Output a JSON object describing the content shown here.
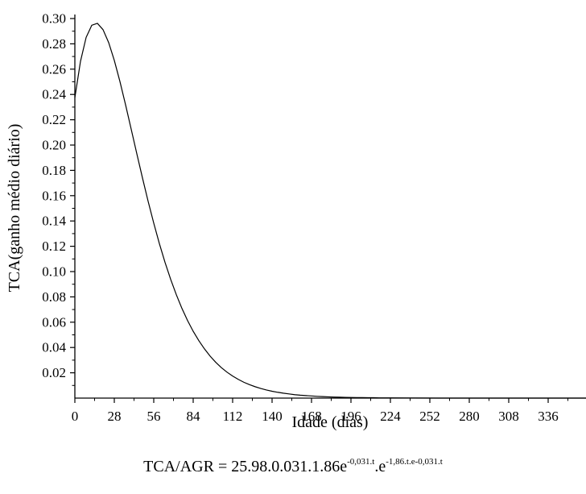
{
  "chart_data": {
    "type": "line",
    "title": "",
    "xlabel": "Idade (dias)",
    "ylabel": "TCA(ganho médio diário)",
    "xlim": [
      0,
      364
    ],
    "ylim": [
      0,
      0.3
    ],
    "x_ticks": [
      0,
      28,
      56,
      84,
      112,
      140,
      168,
      196,
      224,
      252,
      280,
      308,
      336
    ],
    "x_tick_labels": [
      "0",
      "28",
      "56",
      "84",
      "112",
      "140",
      "168",
      "196",
      "224",
      "252",
      "280",
      "308",
      "336"
    ],
    "y_ticks": [
      0.02,
      0.04,
      0.06,
      0.08,
      0.1,
      0.12,
      0.14,
      0.16,
      0.18,
      0.2,
      0.22,
      0.24,
      0.26,
      0.28,
      0.3
    ],
    "y_tick_labels": [
      "0.02",
      "0.04",
      "0.06",
      "0.08",
      "0.10",
      "0.12",
      "0.14",
      "0.16",
      "0.18",
      "0.20",
      "0.22",
      "0.24",
      "0.26",
      "0.28",
      "0.30"
    ],
    "grid": false,
    "legend": "none",
    "series": [
      {
        "x": [
          0,
          4,
          8,
          12,
          16,
          20,
          24,
          28,
          32,
          36,
          40,
          44,
          48,
          52,
          56,
          60,
          64,
          68,
          72,
          76,
          80,
          84,
          88,
          92,
          96,
          100,
          104,
          108,
          112,
          116,
          120,
          124,
          128,
          132,
          136,
          140,
          144,
          148,
          152,
          156,
          160,
          164,
          168,
          172,
          176,
          180,
          184,
          188,
          192,
          196,
          200,
          204,
          208,
          212,
          216,
          220,
          224,
          240,
          260,
          280,
          300,
          320,
          340,
          364
        ],
        "y": [
          0.2375,
          0.2662,
          0.2851,
          0.2947,
          0.2962,
          0.2912,
          0.281,
          0.2669,
          0.2502,
          0.2318,
          0.2125,
          0.1931,
          0.174,
          0.1556,
          0.1383,
          0.1221,
          0.1073,
          0.0939,
          0.0818,
          0.0709,
          0.0613,
          0.0528,
          0.0454,
          0.0389,
          0.0332,
          0.0283,
          0.0241,
          0.0205,
          0.0174,
          0.0148,
          0.0125,
          0.0106,
          0.009,
          0.0076,
          0.0064,
          0.0054,
          0.0046,
          0.0039,
          0.0033,
          0.0027,
          0.0023,
          0.002,
          0.0017,
          0.0014,
          0.0012,
          0.001,
          0.0008,
          0.0007,
          0.0006,
          0.0005,
          0.0004,
          0.0004,
          0.0003,
          0.0003,
          0.0002,
          0.0002,
          0.0002,
          0.0001,
          0.0,
          0.0,
          0.0,
          0.0,
          0.0,
          0.0
        ]
      }
    ]
  },
  "formula": {
    "base": "TCA/AGR = 25.98.0.031.1.86e",
    "exp1": "-0,031.t",
    "mid": ".e",
    "exp2": "-1,86.t.e-0,031.t"
  }
}
